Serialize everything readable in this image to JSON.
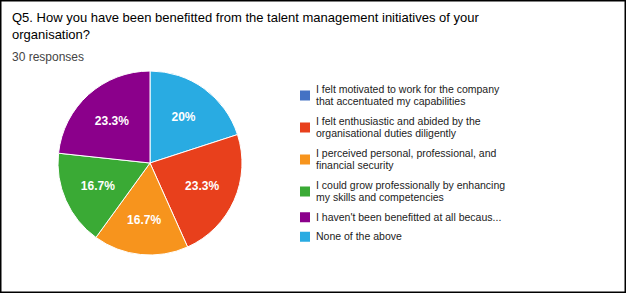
{
  "chart_data": {
    "type": "pie",
    "title": "Q5. How you have been benefitted from the talent management initiatives of your\norganisation?",
    "subtitle": "30 responses",
    "values": [
      20.0,
      23.3,
      16.7,
      16.7,
      23.3
    ],
    "value_labels": [
      "20%",
      "23.3%",
      "16.7%",
      "16.7%",
      "23.3%"
    ],
    "colors": [
      "#29ABE2",
      "#E8401C",
      "#F7941D",
      "#3AAA35",
      "#8B008B"
    ],
    "data_labels": true,
    "legend": "right",
    "legend_entries": [
      {
        "label": "I felt motivated to work for the company\nthat accentuated my capabilities",
        "color": "#4472C4"
      },
      {
        "label": "I felt enthusiastic and abided by the\norganisational duties diligently",
        "color": "#E8401C"
      },
      {
        "label": "I perceived personal, professional, and\nfinancial security",
        "color": "#F7941D"
      },
      {
        "label": "I could grow professionally by enhancing\nmy skills and competencies",
        "color": "#3AAA35"
      },
      {
        "label": "I haven't been benefitted at all becaus...",
        "color": "#8B008B"
      },
      {
        "label": "None of the above",
        "color": "#29ABE2"
      }
    ]
  }
}
